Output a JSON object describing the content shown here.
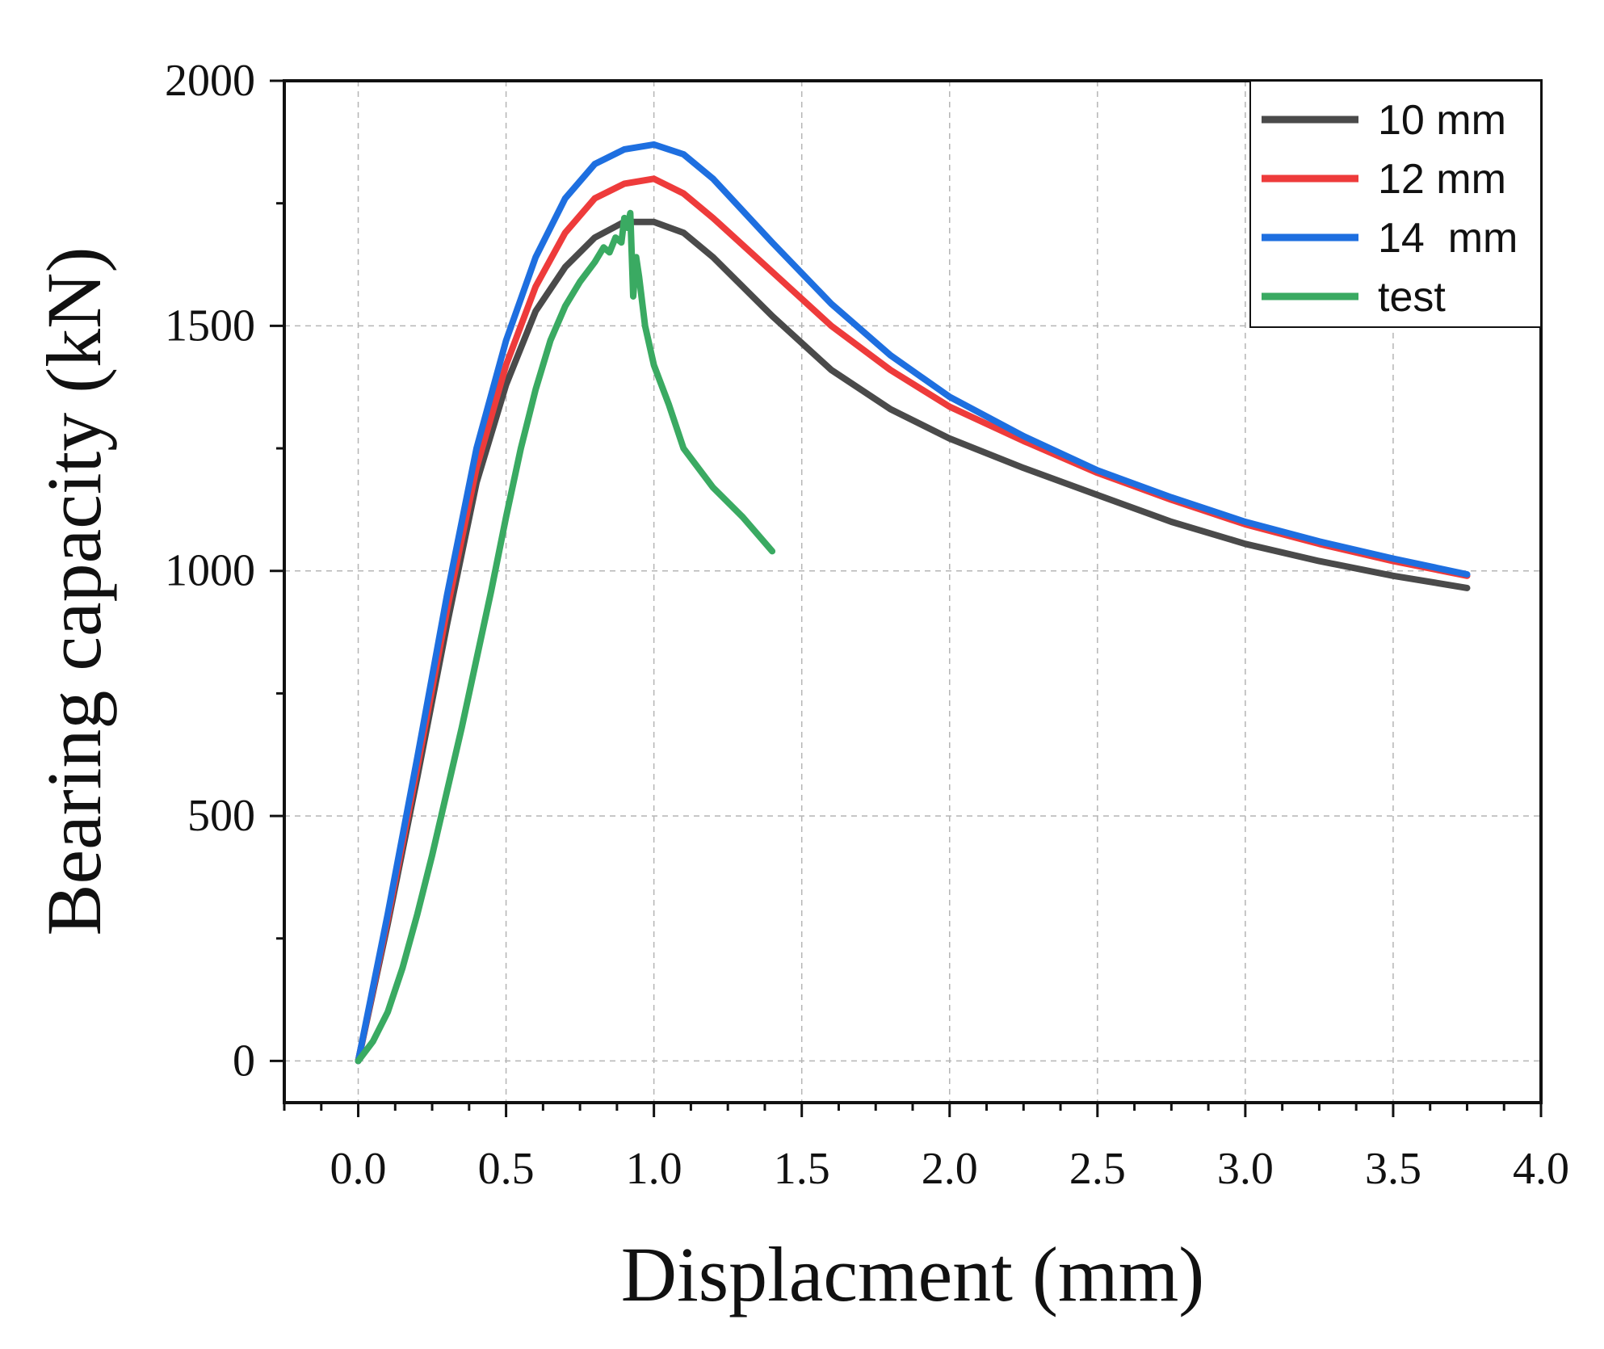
{
  "chart_data": {
    "type": "line",
    "title": "",
    "xlabel": "Displacment (mm)",
    "ylabel": "Bearing capacity (kN)",
    "xlim": [
      -0.25,
      4.0
    ],
    "ylim": [
      -85,
      2000
    ],
    "xticks": [
      0.0,
      0.5,
      1.0,
      1.5,
      2.0,
      2.5,
      3.0,
      3.5,
      4.0
    ],
    "xtick_labels": [
      "0.0",
      "0.5",
      "1.0",
      "1.5",
      "2.0",
      "2.5",
      "3.0",
      "3.5",
      "4.0"
    ],
    "yticks": [
      0,
      500,
      1000,
      1500,
      2000
    ],
    "ytick_labels": [
      "0",
      "500",
      "1000",
      "1500",
      "2000"
    ],
    "grid": true,
    "legend_position": "top-right",
    "series": [
      {
        "name": "10 mm",
        "color": "#4a4a4a",
        "x": [
          0,
          0.1,
          0.2,
          0.3,
          0.4,
          0.5,
          0.6,
          0.7,
          0.8,
          0.9,
          1.0,
          1.1,
          1.2,
          1.4,
          1.6,
          1.8,
          2.0,
          2.25,
          2.5,
          2.75,
          3.0,
          3.25,
          3.5,
          3.75
        ],
        "y": [
          0,
          280,
          580,
          890,
          1180,
          1380,
          1530,
          1620,
          1680,
          1712,
          1712,
          1690,
          1640,
          1520,
          1410,
          1330,
          1270,
          1210,
          1155,
          1100,
          1055,
          1020,
          990,
          965
        ]
      },
      {
        "name": "12 mm",
        "color": "#ee3b3b",
        "x": [
          0,
          0.1,
          0.2,
          0.3,
          0.4,
          0.5,
          0.6,
          0.7,
          0.8,
          0.9,
          1.0,
          1.1,
          1.2,
          1.4,
          1.6,
          1.8,
          2.0,
          2.25,
          2.5,
          2.75,
          3.0,
          3.25,
          3.5,
          3.75
        ],
        "y": [
          0,
          290,
          600,
          920,
          1210,
          1420,
          1580,
          1690,
          1760,
          1790,
          1800,
          1770,
          1720,
          1610,
          1500,
          1410,
          1335,
          1265,
          1200,
          1145,
          1095,
          1055,
          1020,
          990
        ]
      },
      {
        "name": "14  mm",
        "color": "#1e6fe0",
        "x": [
          0,
          0.1,
          0.2,
          0.3,
          0.4,
          0.5,
          0.6,
          0.7,
          0.8,
          0.9,
          1.0,
          1.1,
          1.2,
          1.4,
          1.6,
          1.8,
          2.0,
          2.25,
          2.5,
          2.75,
          3.0,
          3.25,
          3.5,
          3.75
        ],
        "y": [
          0,
          300,
          620,
          950,
          1250,
          1470,
          1640,
          1760,
          1830,
          1860,
          1870,
          1850,
          1800,
          1670,
          1545,
          1440,
          1355,
          1275,
          1205,
          1150,
          1100,
          1060,
          1025,
          993
        ]
      },
      {
        "name": "test",
        "color": "#3aaa62",
        "x": [
          0,
          0.05,
          0.1,
          0.15,
          0.2,
          0.25,
          0.3,
          0.35,
          0.4,
          0.45,
          0.5,
          0.55,
          0.6,
          0.65,
          0.7,
          0.75,
          0.8,
          0.83,
          0.85,
          0.87,
          0.89,
          0.9,
          0.91,
          0.92,
          0.93,
          0.94,
          0.95,
          0.97,
          1.0,
          1.05,
          1.1,
          1.2,
          1.3,
          1.4
        ],
        "y": [
          0,
          40,
          100,
          190,
          300,
          420,
          550,
          680,
          820,
          960,
          1110,
          1250,
          1370,
          1470,
          1540,
          1590,
          1630,
          1660,
          1650,
          1680,
          1670,
          1720,
          1700,
          1730,
          1560,
          1640,
          1600,
          1500,
          1420,
          1340,
          1250,
          1170,
          1110,
          1040
        ]
      }
    ]
  }
}
